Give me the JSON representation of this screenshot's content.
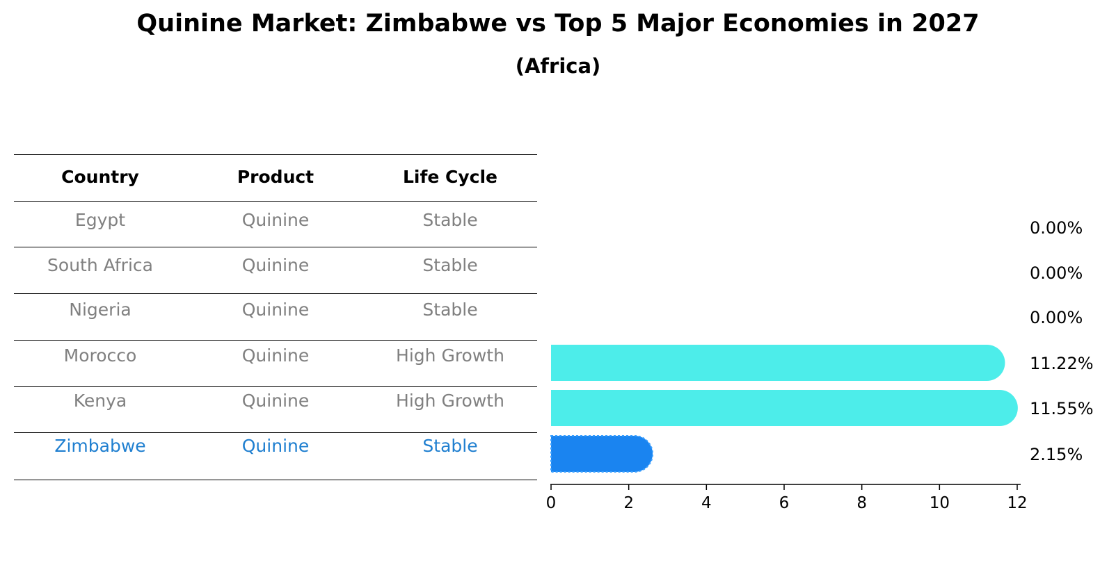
{
  "chart_data": {
    "type": "bar",
    "orientation": "horizontal",
    "title": "Quinine Market: Zimbabwe vs Top 5 Major Economies in 2027",
    "subtitle": "(Africa)",
    "categories": [
      "Egypt",
      "South Africa",
      "Nigeria",
      "Morocco",
      "Kenya",
      "Zimbabwe"
    ],
    "values": [
      0.0,
      0.0,
      0.0,
      11.22,
      11.55,
      2.15
    ],
    "value_labels": [
      "0.00%",
      "0.00%",
      "0.00%",
      "11.22%",
      "11.55%",
      "2.15%"
    ],
    "xlim": [
      0,
      12
    ],
    "xticks": [
      0,
      2,
      4,
      6,
      8,
      10,
      12
    ],
    "xlabel": "",
    "ylabel": "",
    "highlight": "Zimbabwe",
    "bar_colors": {
      "default": "#4dedea",
      "highlight": "#1a84f0"
    }
  },
  "table": {
    "headers": [
      "Country",
      "Product",
      "Life Cycle"
    ],
    "rows": [
      [
        "Egypt",
        "Quinine",
        "Stable"
      ],
      [
        "South Africa",
        "Quinine",
        "Stable"
      ],
      [
        "Nigeria",
        "Quinine",
        "Stable"
      ],
      [
        "Morocco",
        "Quinine",
        "High Growth"
      ],
      [
        "Kenya",
        "Quinine",
        "High Growth"
      ],
      [
        "Zimbabwe",
        "Quinine",
        "Stable"
      ]
    ],
    "highlight_row": 5,
    "text_color": "#808080",
    "highlight_color": "#1f7fd0"
  }
}
